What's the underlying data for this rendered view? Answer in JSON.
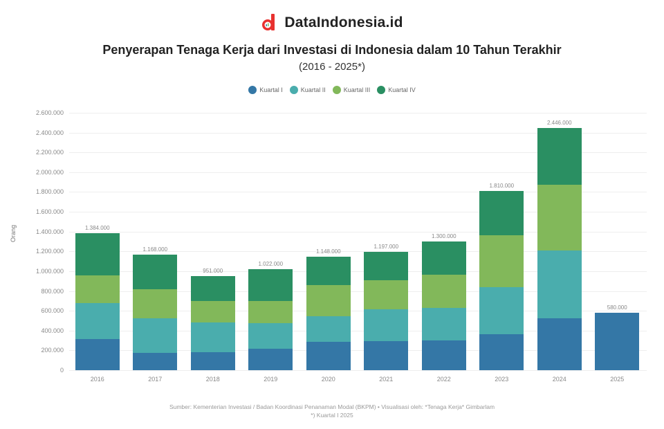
{
  "brand": {
    "name": "DataIndonesia.id",
    "logo_color": "#e8312f"
  },
  "header": {
    "title": "Penyerapan Tenaga Kerja dari Investasi di Indonesia dalam 10 Tahun Terakhir",
    "subtitle": "(2016 - 2025*)"
  },
  "legend": [
    {
      "label": "Kuartal I",
      "color": "#3477a6"
    },
    {
      "label": "Kuartal II",
      "color": "#4aadad"
    },
    {
      "label": "Kuartal III",
      "color": "#82b85a"
    },
    {
      "label": "Kuartal IV",
      "color": "#2a8f62"
    }
  ],
  "axis": {
    "ylabel": "Orang",
    "yticks": [
      "0",
      "200.000",
      "400.000",
      "600.000",
      "800.000",
      "1.000.000",
      "1.200.000",
      "1.400.000",
      "1.600.000",
      "1.800.000",
      "2.000.000",
      "2.200.000",
      "2.400.000",
      "2.600.000"
    ]
  },
  "footer": {
    "source": "Sumber: Kementerian Investasi / Badan Koordinasi Penanaman Modal (BKPM) • Visualisasi oleh: *Tenaga Kerja* Gimbarlam",
    "note": "*) Kuartal I 2025"
  },
  "chart_data": {
    "type": "bar",
    "stacked": true,
    "title": "Penyerapan Tenaga Kerja dari Investasi di Indonesia dalam 10 Tahun Terakhir",
    "subtitle": "(2016 - 2025*)",
    "xlabel": "",
    "ylabel": "Orang",
    "ylim": [
      0,
      2600000
    ],
    "grid": true,
    "legend_position": "top",
    "categories": [
      "2016",
      "2017",
      "2018",
      "2019",
      "2020",
      "2021",
      "2022",
      "2023",
      "2024",
      "2025"
    ],
    "series": [
      {
        "name": "Kuartal I",
        "color": "#3477a6",
        "values": [
          314000,
          175000,
          182000,
          217000,
          287000,
          294000,
          301000,
          364000,
          524000,
          580000
        ]
      },
      {
        "name": "Kuartal II",
        "color": "#4aadad",
        "values": [
          364000,
          350000,
          300000,
          259000,
          259000,
          322000,
          329000,
          475000,
          685000,
          0
        ]
      },
      {
        "name": "Kuartal III",
        "color": "#82b85a",
        "values": [
          280000,
          293000,
          217000,
          224000,
          315000,
          294000,
          335000,
          524000,
          664000,
          0
        ]
      },
      {
        "name": "Kuartal IV",
        "color": "#2a8f62",
        "values": [
          426000,
          350000,
          252000,
          322000,
          287000,
          287000,
          335000,
          447000,
          573000,
          0
        ]
      }
    ],
    "totals": [
      "1.384.000",
      "1.168.000",
      "951.000",
      "1.022.000",
      "1.148.000",
      "1.197.000",
      "1.300.000",
      "1.810.000",
      "2.446.000",
      "580.000"
    ]
  }
}
